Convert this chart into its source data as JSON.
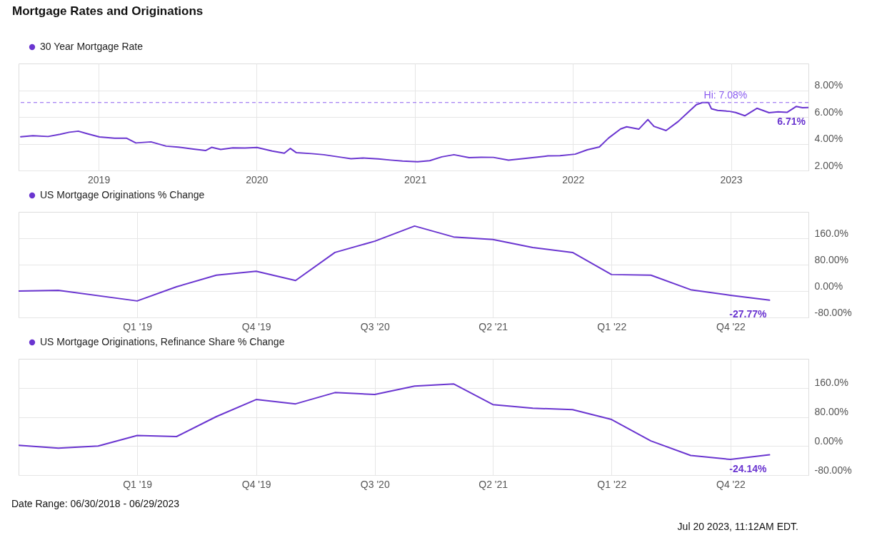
{
  "chart_data": [
    {
      "type": "line",
      "title": "Mortgage Rates and Originations",
      "legend": "top left",
      "grid": true,
      "xlim": [
        "2018-06-30",
        "2023-06-29"
      ],
      "xticks": [
        {
          "value": "2019-01-01",
          "label": "2019"
        },
        {
          "value": "2020-01-01",
          "label": "2020"
        },
        {
          "value": "2021-01-01",
          "label": "2021"
        },
        {
          "value": "2022-01-01",
          "label": "2022"
        },
        {
          "value": "2023-01-01",
          "label": "2023"
        }
      ],
      "ylim": [
        2,
        10
      ],
      "yticks": [
        {
          "value": 2,
          "label": "2.00%"
        },
        {
          "value": 4,
          "label": "4.00%"
        },
        {
          "value": 6,
          "label": "6.00%"
        },
        {
          "value": 8,
          "label": "8.00%"
        }
      ],
      "x": [
        "2018-07-05",
        "2018-08-02",
        "2018-09-06",
        "2018-10-04",
        "2018-10-25",
        "2018-11-15",
        "2018-12-06",
        "2019-01-03",
        "2019-02-07",
        "2019-03-07",
        "2019-03-28",
        "2019-05-02",
        "2019-06-06",
        "2019-07-04",
        "2019-08-08",
        "2019-09-05",
        "2019-09-19",
        "2019-10-10",
        "2019-11-07",
        "2019-12-05",
        "2020-01-02",
        "2020-02-06",
        "2020-03-05",
        "2020-03-19",
        "2020-04-02",
        "2020-05-07",
        "2020-06-04",
        "2020-07-16",
        "2020-08-06",
        "2020-09-03",
        "2020-10-08",
        "2020-11-05",
        "2020-12-03",
        "2021-01-07",
        "2021-02-04",
        "2021-03-04",
        "2021-04-01",
        "2021-05-06",
        "2021-06-03",
        "2021-07-01",
        "2021-08-05",
        "2021-09-02",
        "2021-10-07",
        "2021-11-04",
        "2021-12-02",
        "2022-01-06",
        "2022-02-03",
        "2022-03-03",
        "2022-03-24",
        "2022-04-21",
        "2022-05-05",
        "2022-06-02",
        "2022-06-23",
        "2022-07-07",
        "2022-08-04",
        "2022-09-01",
        "2022-09-22",
        "2022-10-13",
        "2022-10-27",
        "2022-11-10",
        "2022-11-17",
        "2022-12-01",
        "2022-12-29",
        "2023-01-12",
        "2023-02-02",
        "2023-03-02",
        "2023-03-30",
        "2023-04-20",
        "2023-05-11",
        "2023-06-01",
        "2023-06-15",
        "2023-06-29"
      ],
      "series": [
        {
          "name": "30 Year Mortgage Rate",
          "color": "#6a35d0",
          "values": [
            4.52,
            4.6,
            4.54,
            4.71,
            4.86,
            4.94,
            4.75,
            4.51,
            4.41,
            4.41,
            4.06,
            4.14,
            3.82,
            3.75,
            3.6,
            3.49,
            3.73,
            3.57,
            3.69,
            3.68,
            3.72,
            3.45,
            3.29,
            3.65,
            3.33,
            3.26,
            3.18,
            2.98,
            2.88,
            2.93,
            2.87,
            2.78,
            2.71,
            2.65,
            2.73,
            3.02,
            3.18,
            2.96,
            2.99,
            2.98,
            2.77,
            2.87,
            2.99,
            3.09,
            3.11,
            3.22,
            3.55,
            3.76,
            4.42,
            5.11,
            5.27,
            5.09,
            5.81,
            5.3,
            4.99,
            5.66,
            6.29,
            6.92,
            7.08,
            7.08,
            6.61,
            6.49,
            6.42,
            6.33,
            6.09,
            6.65,
            6.32,
            6.39,
            6.35,
            6.79,
            6.69,
            6.71
          ]
        }
      ],
      "ref_lines": [
        {
          "axis": "y",
          "value": 7.08,
          "label": "Hi: 7.08%",
          "color": "#8a5cf0",
          "line_style": "dashed"
        }
      ],
      "annotations": [
        {
          "text": "6.71%",
          "x": "2023-06-29",
          "y": 6.71
        }
      ]
    },
    {
      "type": "line",
      "legend": "top left",
      "grid": true,
      "xlim": [
        "2018-06-30",
        "2023-06-29"
      ],
      "xticks": [
        {
          "value": "2019-03-31",
          "label": "Q1 '19"
        },
        {
          "value": "2019-12-31",
          "label": "Q4 '19"
        },
        {
          "value": "2020-09-30",
          "label": "Q3 '20"
        },
        {
          "value": "2021-06-30",
          "label": "Q2 '21"
        },
        {
          "value": "2022-03-31",
          "label": "Q1 '22"
        },
        {
          "value": "2022-12-31",
          "label": "Q4 '22"
        }
      ],
      "ylim": [
        -80,
        240
      ],
      "yticks": [
        {
          "value": -80,
          "label": "-80.00%"
        },
        {
          "value": 0,
          "label": "0.00%"
        },
        {
          "value": 80,
          "label": "80.00%"
        },
        {
          "value": 160,
          "label": "160.0%"
        }
      ],
      "x": [
        "2018-06-30",
        "2018-09-30",
        "2019-03-31",
        "2019-06-30",
        "2019-09-30",
        "2019-12-31",
        "2020-03-31",
        "2020-06-30",
        "2020-09-30",
        "2020-12-31",
        "2021-03-31",
        "2021-06-30",
        "2021-09-30",
        "2021-12-31",
        "2022-03-31",
        "2022-06-30",
        "2022-09-30",
        "2022-12-31",
        "2023-03-31"
      ],
      "series": [
        {
          "name": "US Mortgage Originations % Change",
          "color": "#6a35d0",
          "values": [
            0,
            2,
            -30,
            13,
            48,
            60,
            32,
            117,
            151,
            197,
            164,
            156,
            132,
            117,
            50,
            48,
            4,
            -13,
            -27.77
          ]
        }
      ],
      "annotations": [
        {
          "text": "-27.77%",
          "x": "2023-03-31",
          "y": -27.77
        }
      ]
    },
    {
      "type": "line",
      "legend": "top left",
      "grid": true,
      "xlim": [
        "2018-06-30",
        "2023-06-29"
      ],
      "xticks": [
        {
          "value": "2019-03-31",
          "label": "Q1 '19"
        },
        {
          "value": "2019-12-31",
          "label": "Q4 '19"
        },
        {
          "value": "2020-09-30",
          "label": "Q3 '20"
        },
        {
          "value": "2021-06-30",
          "label": "Q2 '21"
        },
        {
          "value": "2022-03-31",
          "label": "Q1 '22"
        },
        {
          "value": "2022-12-31",
          "label": "Q4 '22"
        }
      ],
      "ylim": [
        -80,
        240
      ],
      "yticks": [
        {
          "value": -80,
          "label": "-80.00%"
        },
        {
          "value": 0,
          "label": "0.00%"
        },
        {
          "value": 80,
          "label": "80.00%"
        },
        {
          "value": 160,
          "label": "160.0%"
        }
      ],
      "x": [
        "2018-06-30",
        "2018-09-30",
        "2018-12-31",
        "2019-03-31",
        "2019-06-30",
        "2019-09-30",
        "2019-12-31",
        "2020-03-31",
        "2020-06-30",
        "2020-09-30",
        "2020-12-31",
        "2021-03-31",
        "2021-06-30",
        "2021-09-30",
        "2021-12-31",
        "2022-03-31",
        "2022-06-30",
        "2022-09-30",
        "2022-12-31",
        "2023-03-31"
      ],
      "series": [
        {
          "name": "US Mortgage Originations, Refinance Share % Change",
          "color": "#6a35d0",
          "values": [
            2,
            -6,
            0,
            29,
            26,
            81,
            128,
            116,
            147,
            142,
            165,
            171,
            114,
            104,
            100,
            73,
            14,
            -26,
            -37,
            -24.14
          ]
        }
      ],
      "annotations": [
        {
          "text": "-24.14%",
          "x": "2023-03-31",
          "y": -24.14
        },
        "Date Range: 06/30/2018 - 06/29/2023",
        "Jul 20 2023, 11:12AM EDT."
      ]
    }
  ]
}
